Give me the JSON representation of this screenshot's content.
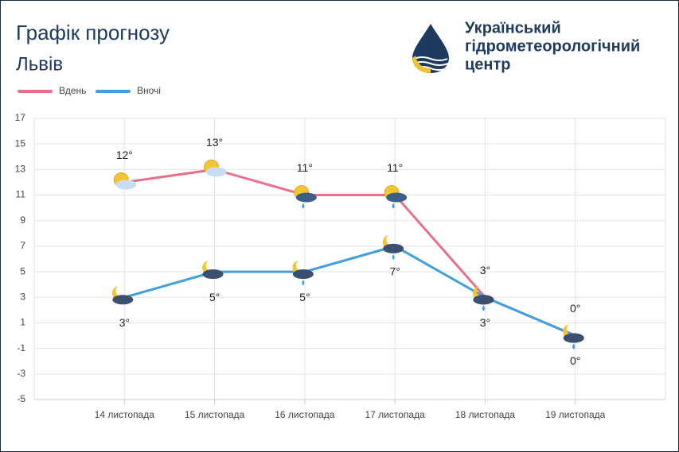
{
  "chart_data": {
    "type": "line",
    "title": "Графік прогнозу",
    "subtitle": "Львів",
    "categories": [
      "14 листопада",
      "15 листопада",
      "16 листопада",
      "17 листопада",
      "18 листопада",
      "19 листопада"
    ],
    "series": [
      {
        "name": "Вдень",
        "color": "#e8708a",
        "values": [
          12,
          13,
          11,
          11,
          3,
          0
        ],
        "value_labels": [
          "12°",
          "13°",
          "11°",
          "11°",
          "3°",
          "0°"
        ]
      },
      {
        "name": "Вночі",
        "color": "#3fa0dd",
        "values": [
          3,
          5,
          5,
          7,
          3,
          0
        ],
        "value_labels": [
          "3°",
          "5°",
          "5°",
          "7°",
          "3°",
          "0°"
        ]
      }
    ],
    "ylim": [
      -5,
      17
    ],
    "yticks": [
      -5,
      -3,
      -1,
      1,
      3,
      5,
      7,
      9,
      11,
      13,
      15,
      17
    ],
    "grid": true
  },
  "logo": {
    "lines": [
      "Український",
      "гідрометеорологічний",
      "центр"
    ]
  }
}
